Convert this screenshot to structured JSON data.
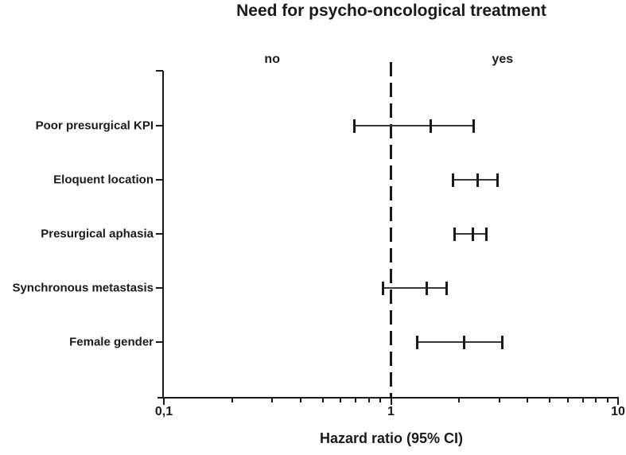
{
  "colors": {
    "foreground": "#1a1a1a",
    "background": "#ffffff"
  },
  "chart_data": {
    "type": "forest",
    "title": "Need for psycho-oncological treatment",
    "xlabel": "Hazard ratio (95% CI)",
    "x_scale": "log",
    "xlim": [
      0.1,
      10
    ],
    "x_major_ticks": [
      {
        "value": 0.1,
        "label": "0,1"
      },
      {
        "value": 1,
        "label": "1"
      },
      {
        "value": 10,
        "label": "10"
      }
    ],
    "x_minor_ticks": [
      0.2,
      0.3,
      0.4,
      0.5,
      0.6,
      0.7,
      0.8,
      0.9,
      2,
      3,
      4,
      5,
      6,
      7,
      8,
      9
    ],
    "reference_line": {
      "value": 1,
      "style": "dashed"
    },
    "region_labels": [
      {
        "text": "no",
        "x": 0.3
      },
      {
        "text": "yes",
        "x": 3.1
      }
    ],
    "rows": [
      {
        "category": "Poor presurgical KPI",
        "hr": 1.5,
        "ci_low": 0.69,
        "ci_high": 2.32
      },
      {
        "category": "Eloquent location",
        "hr": 2.41,
        "ci_low": 1.88,
        "ci_high": 2.95
      },
      {
        "category": "Presurgical aphasia",
        "hr": 2.3,
        "ci_low": 1.91,
        "ci_high": 2.64
      },
      {
        "category": "Synchronous metastasis",
        "hr": 1.44,
        "ci_low": 0.92,
        "ci_high": 1.76
      },
      {
        "category": "Female gender",
        "hr": 2.1,
        "ci_low": 1.3,
        "ci_high": 3.1
      }
    ]
  }
}
